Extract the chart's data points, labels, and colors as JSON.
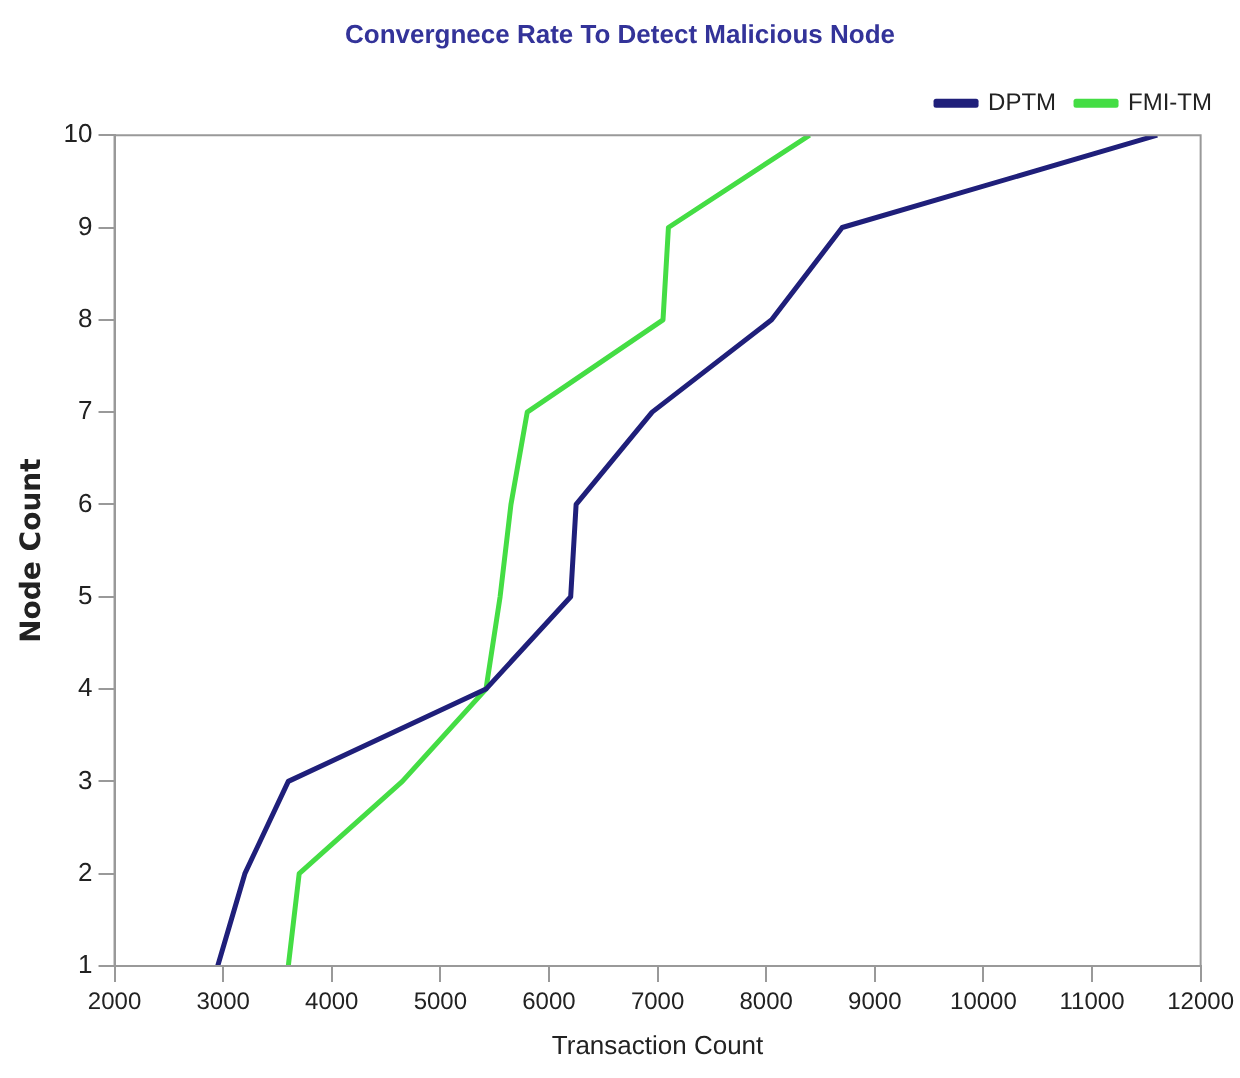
{
  "chart_data": {
    "type": "line",
    "title": "Convergnece Rate To Detect Malicious Node",
    "xlabel": "Transaction Count",
    "ylabel": "Node Count",
    "series": [
      {
        "name": "DPTM",
        "color": "#1f1f7a",
        "x": [
          2950,
          3200,
          3600,
          5420,
          6200,
          6250,
          6950,
          8050,
          8700,
          11600
        ],
        "values": [
          1,
          2,
          3,
          4,
          5,
          6,
          7,
          8,
          9,
          10
        ]
      },
      {
        "name": "FMI-TM",
        "color": "#44dd44",
        "x": [
          3600,
          3700,
          4650,
          5420,
          5550,
          5650,
          5800,
          7050,
          7100,
          8400
        ],
        "values": [
          1,
          2,
          3,
          4,
          5,
          6,
          7,
          8,
          9,
          10
        ]
      }
    ],
    "xlim": [
      2000,
      12000
    ],
    "xticks": [
      2000,
      3000,
      4000,
      5000,
      6000,
      7000,
      8000,
      9000,
      10000,
      11000,
      12000
    ],
    "ylim": [
      1,
      10
    ],
    "yticks": [
      1,
      2,
      3,
      4,
      5,
      6,
      7,
      8,
      9,
      10
    ],
    "grid": false,
    "legend": "top right",
    "marker": "none",
    "line_style": "solid"
  }
}
